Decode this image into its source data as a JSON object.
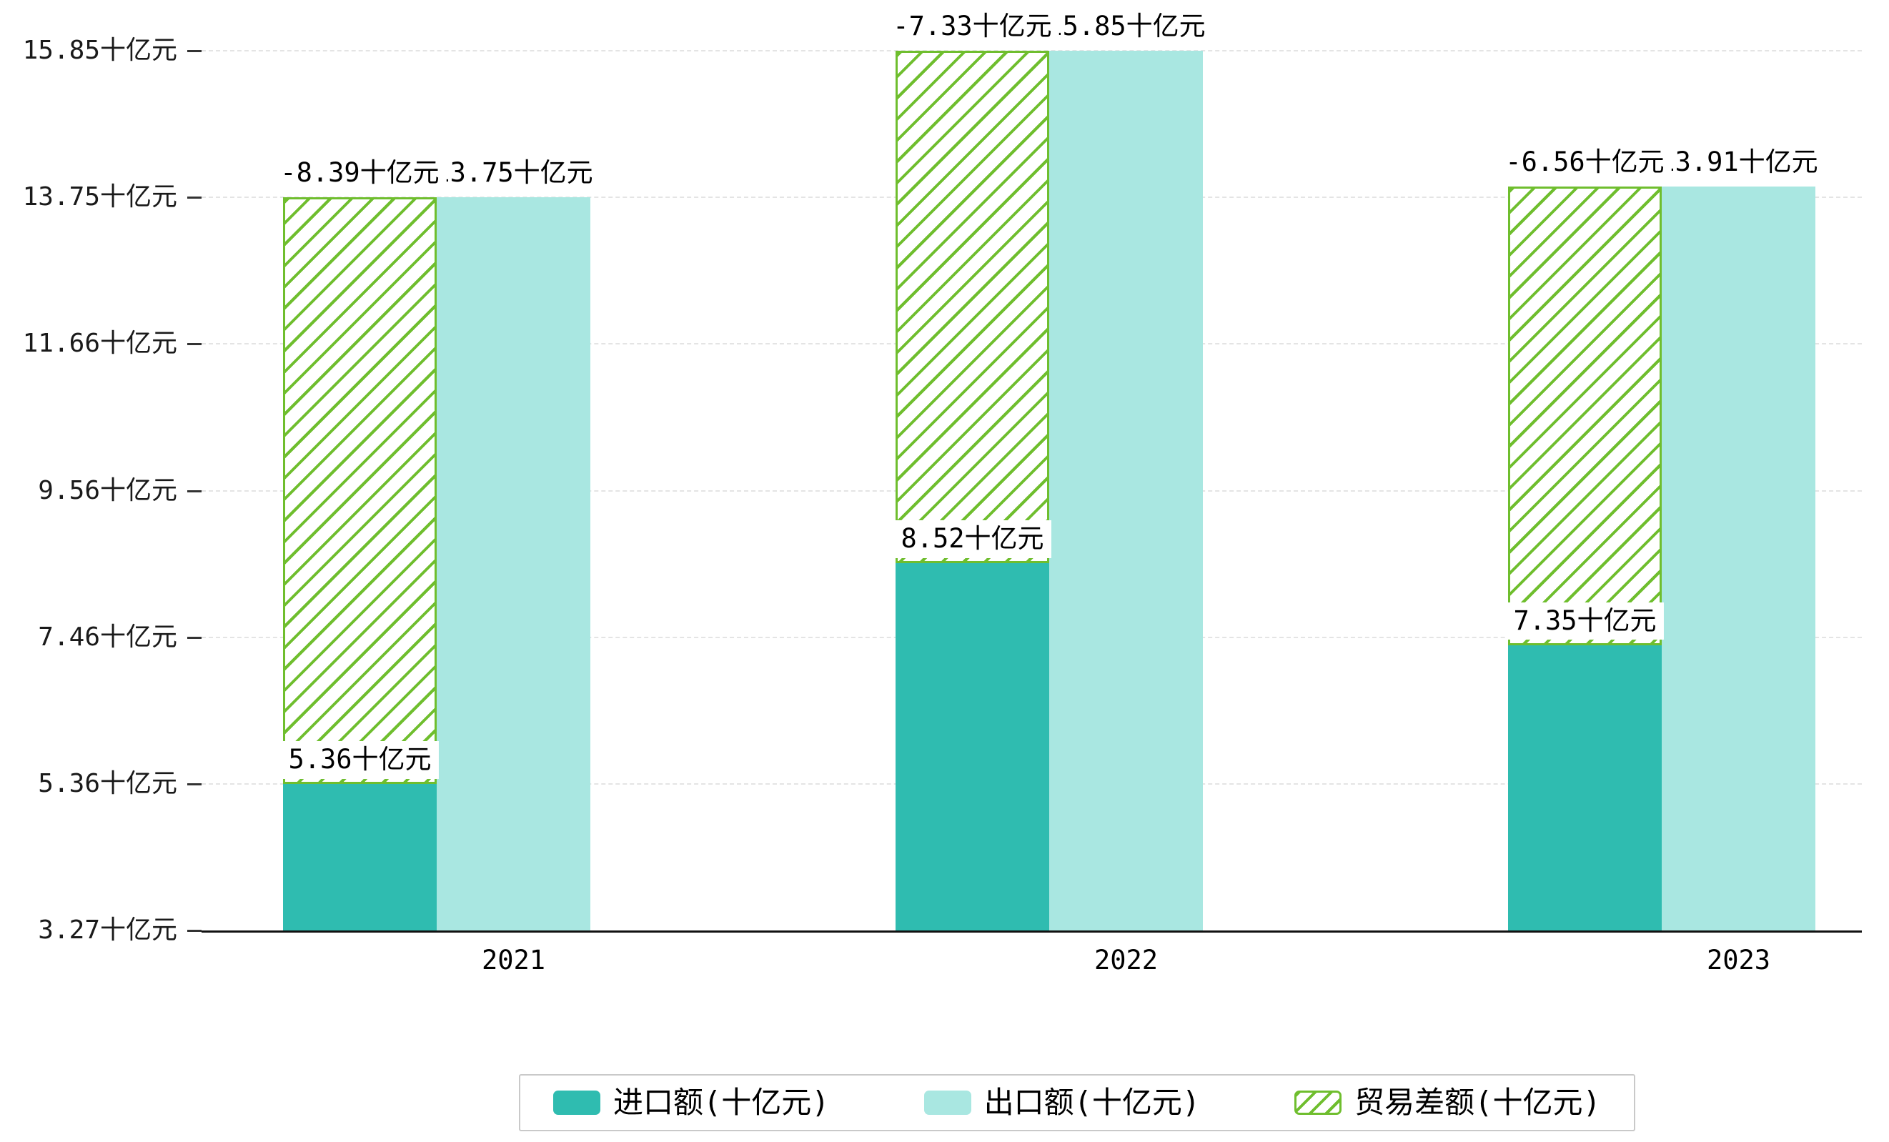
{
  "chart_data": {
    "type": "bar",
    "title": "",
    "unit": "十亿元",
    "categories": [
      "2021",
      "2022",
      "2023"
    ],
    "series": [
      {
        "name": "进口额(十亿元)",
        "role": "import",
        "values": [
          5.36,
          8.52,
          7.35
        ],
        "color": "#2fbcb0",
        "style": "solid"
      },
      {
        "name": "出口额(十亿元)",
        "role": "export",
        "values": [
          13.75,
          15.85,
          13.91
        ],
        "color": "#a9e7e1",
        "style": "solid"
      },
      {
        "name": "贸易差额(十亿元)",
        "role": "trade-balance",
        "values": [
          -8.39,
          -7.33,
          -6.56
        ],
        "color": "#6fbe2e",
        "style": "hatched"
      }
    ],
    "bar_value_labels": {
      "import": [
        "5.36十亿元",
        "8.52十亿元",
        "7.35十亿元"
      ],
      "export": [
        "13.75十亿元",
        "15.85十亿元",
        "13.91十亿元"
      ],
      "trade_balance": [
        "-8.39十亿元",
        "-7.33十亿元",
        "-6.56十亿元"
      ]
    },
    "y_axis": {
      "range": [
        3.27,
        15.85
      ],
      "ticks": [
        3.27,
        5.36,
        7.46,
        9.56,
        11.66,
        13.75,
        15.85
      ],
      "tick_labels": [
        "3.27十亿元",
        "5.36十亿元",
        "7.46十亿元",
        "9.56十亿元",
        "11.66十亿元",
        "13.75十亿元",
        "15.85十亿元"
      ]
    },
    "grid": "horizontal dashed",
    "legend_position": "bottom-center"
  }
}
